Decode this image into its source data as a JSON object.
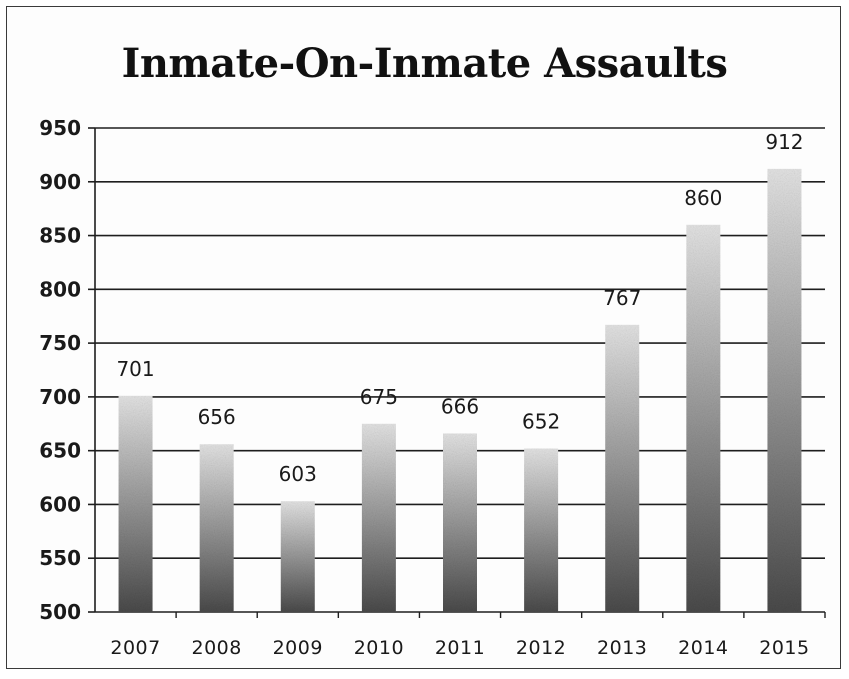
{
  "chart_data": {
    "type": "bar",
    "title": "Inmate-On-Inmate Assaults",
    "categories": [
      "2007",
      "2008",
      "2009",
      "2010",
      "2011",
      "2012",
      "2013",
      "2014",
      "2015"
    ],
    "values": [
      701,
      656,
      603,
      675,
      666,
      652,
      767,
      860,
      912
    ],
    "ylim": [
      500,
      950
    ],
    "yticks": [
      500,
      550,
      600,
      650,
      700,
      750,
      800,
      850,
      900,
      950
    ],
    "xlabel": "",
    "ylabel": "",
    "grid": true,
    "legend": "none",
    "colors": {
      "bar_top": "#e4e4e4",
      "bar_bottom": "#4a4a4a",
      "grid": "#1e1e1e"
    }
  }
}
